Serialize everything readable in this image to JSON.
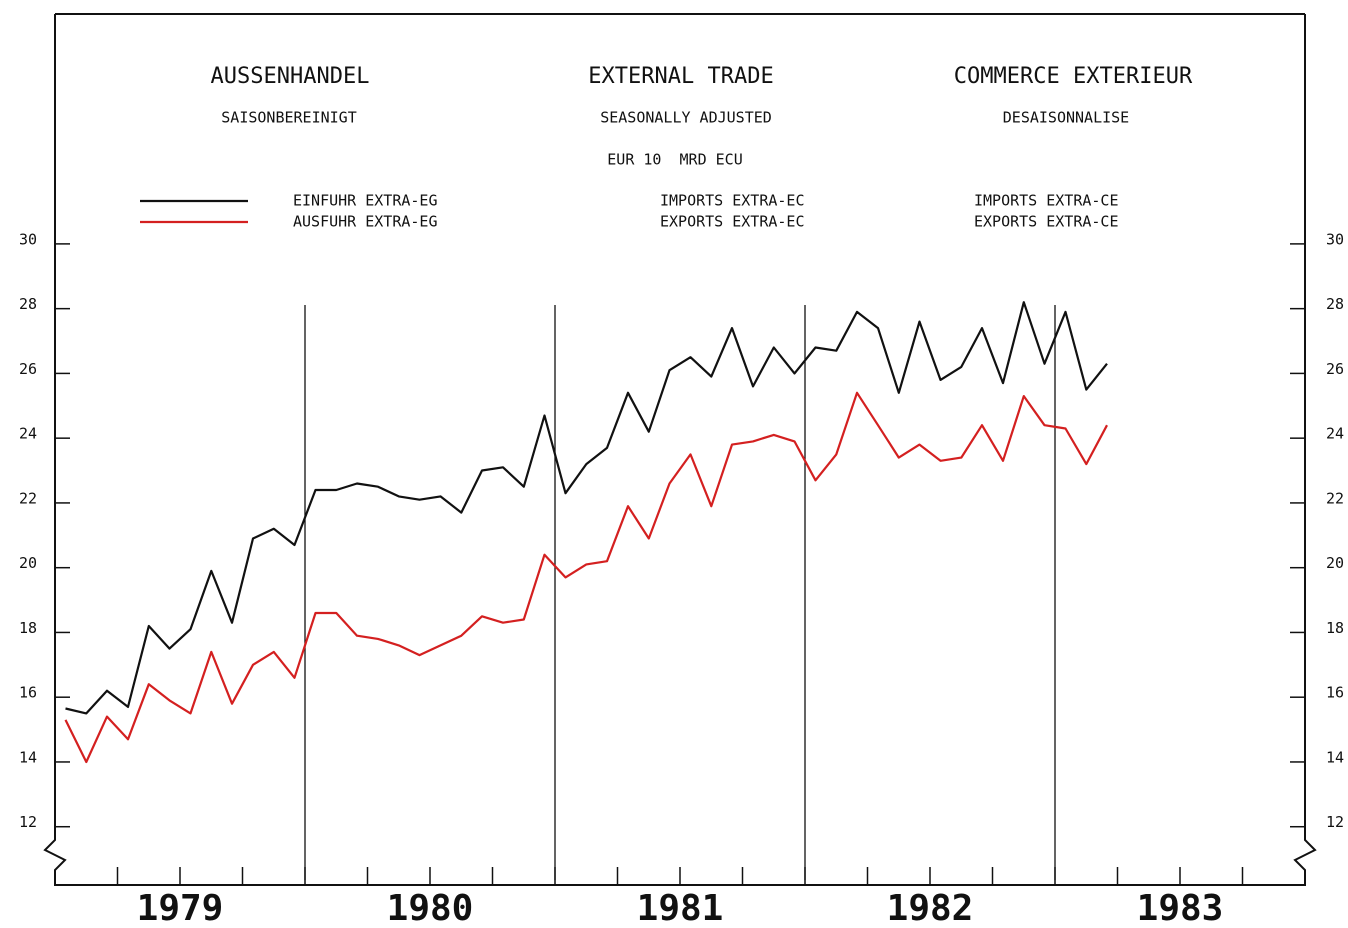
{
  "chart_data": {
    "type": "line",
    "title_de": "AUSSENHANDEL",
    "title_en": "EXTERNAL TRADE",
    "title_fr": "COMMERCE EXTERIEUR",
    "subtitle_de": "SAISONBEREINIGT",
    "subtitle_en": "SEASONALLY ADJUSTED",
    "subtitle_fr": "DESAISONNALISE",
    "unit": "EUR 10  MRD ECU",
    "x": [
      1979.042,
      1979.125,
      1979.208,
      1979.292,
      1979.375,
      1979.458,
      1979.542,
      1979.625,
      1979.708,
      1979.792,
      1979.875,
      1979.958,
      1980.042,
      1980.125,
      1980.208,
      1980.292,
      1980.375,
      1980.458,
      1980.542,
      1980.625,
      1980.708,
      1980.792,
      1980.875,
      1980.958,
      1981.042,
      1981.125,
      1981.208,
      1981.292,
      1981.375,
      1981.458,
      1981.542,
      1981.625,
      1981.708,
      1981.792,
      1981.875,
      1981.958,
      1982.042,
      1982.125,
      1982.208,
      1982.292,
      1982.375,
      1982.458,
      1982.542,
      1982.625,
      1982.708,
      1982.792,
      1982.875,
      1982.958,
      1983.042,
      1983.125,
      1983.208
    ],
    "series": [
      {
        "name": "EINFUHR EXTRA-EG",
        "name_en": "IMPORTS EXTRA-EC",
        "name_fr": "IMPORTS EXTRA-CE",
        "color": "#111111",
        "values": [
          15.65,
          15.5,
          16.2,
          15.7,
          18.2,
          17.5,
          18.1,
          19.9,
          18.3,
          20.9,
          21.2,
          20.7,
          22.4,
          22.4,
          22.6,
          22.5,
          22.2,
          22.1,
          22.2,
          21.7,
          23.0,
          23.1,
          22.5,
          24.7,
          22.3,
          23.2,
          23.7,
          25.4,
          24.2,
          26.1,
          26.5,
          25.9,
          27.4,
          25.6,
          26.8,
          26.0,
          26.8,
          26.7,
          27.9,
          27.4,
          25.4,
          27.6,
          25.8,
          26.2,
          27.4,
          25.7,
          28.2,
          26.3,
          27.9,
          25.5,
          26.3
        ]
      },
      {
        "name": "AUSFUHR EXTRA-EG",
        "name_en": "EXPORTS EXTRA-EC",
        "name_fr": "EXPORTS EXTRA-CE",
        "color": "#d42020",
        "values": [
          15.3,
          14.0,
          15.4,
          14.7,
          16.4,
          15.9,
          15.5,
          17.4,
          15.8,
          17.0,
          17.4,
          16.6,
          18.6,
          18.6,
          17.9,
          17.8,
          17.6,
          17.3,
          17.6,
          17.9,
          18.5,
          18.3,
          18.4,
          20.4,
          19.7,
          20.1,
          20.2,
          21.9,
          20.9,
          22.6,
          23.5,
          21.9,
          23.8,
          23.9,
          24.1,
          23.9,
          22.7,
          23.5,
          25.4,
          24.4,
          23.4,
          23.8,
          23.3,
          23.4,
          24.4,
          23.3,
          25.3,
          24.4,
          24.3,
          23.2,
          24.4
        ]
      }
    ],
    "xlim": [
      1979,
      1984
    ],
    "xticks": [
      {
        "value": 1979.5,
        "label": "1979"
      },
      {
        "value": 1980.5,
        "label": "1980"
      },
      {
        "value": 1981.5,
        "label": "1981"
      },
      {
        "value": 1982.5,
        "label": "1982"
      },
      {
        "value": 1983.5,
        "label": "1983"
      }
    ],
    "xminorticks": [
      1979.25,
      1979.5,
      1979.75,
      1980,
      1980.25,
      1980.5,
      1980.75,
      1981,
      1981.25,
      1981.5,
      1981.75,
      1982,
      1982.25,
      1982.5,
      1982.75,
      1983,
      1983.25,
      1983.5,
      1983.75
    ],
    "year_lines": [
      1980,
      1981,
      1982,
      1983
    ],
    "ylim": [
      10.2,
      37.1
    ],
    "yticks": [
      12,
      14,
      16,
      18,
      20,
      22,
      24,
      26,
      28,
      30
    ]
  }
}
